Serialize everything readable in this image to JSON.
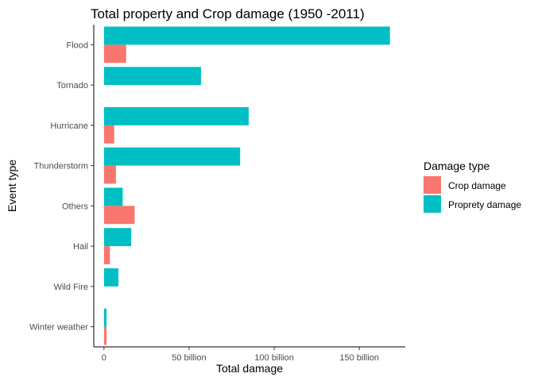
{
  "chart_data": {
    "type": "bar",
    "orientation": "horizontal",
    "title": "Total property and Crop damage (1950 -2011)",
    "xlabel": "Total damage",
    "ylabel": "Event type",
    "categories": [
      "Flood",
      "Tornado",
      "Hurricane",
      "Thunderstorm",
      "Others",
      "Hail",
      "Wild Fire",
      "Winter weather"
    ],
    "series": [
      {
        "key": "crop",
        "color": "#F8766D",
        "values": [
          13,
          0,
          6,
          7,
          18,
          3.5,
          0,
          1.5
        ]
      },
      {
        "key": "property",
        "color": "#00BFC4",
        "values": [
          168,
          57,
          85,
          80,
          11,
          16,
          8.5,
          1.5
        ]
      }
    ],
    "x_unit": "billion",
    "xlim": [
      -6,
      177
    ],
    "x_ticks": [
      {
        "value": 0,
        "label": "0"
      },
      {
        "value": 50,
        "label": "50 billion"
      },
      {
        "value": 100,
        "label": "100 billion"
      },
      {
        "value": 150,
        "label": "150 billion"
      }
    ],
    "grid": false,
    "legend": {
      "title": "Damage type",
      "placement": "right",
      "items": [
        {
          "label": "Crop damage",
          "color": "#F8766D"
        },
        {
          "label": "Proprety damage",
          "color": "#00BFC4"
        }
      ]
    }
  }
}
